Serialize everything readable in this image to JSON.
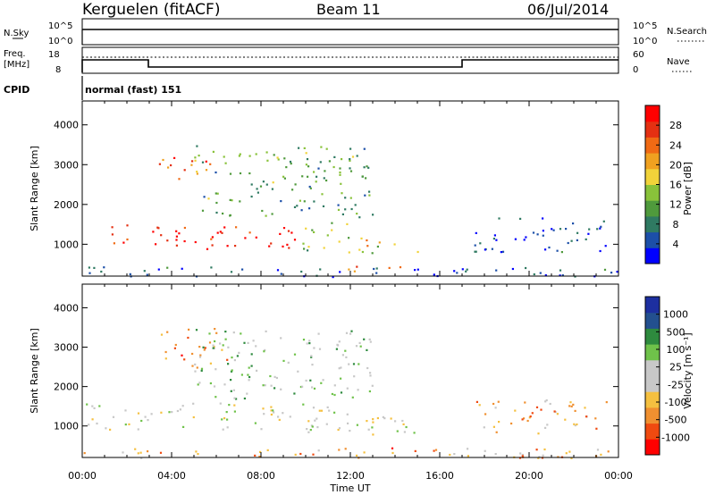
{
  "header": {
    "station": "Kerguelen (fitACF)",
    "beam": "Beam 11",
    "date": "06/Jul/2014"
  },
  "nsky": {
    "left_label": "N.Sky",
    "right_label": "N.Search",
    "left_ticks": [
      "10^5",
      "10^0"
    ],
    "right_ticks": [
      "10^5",
      "10^0"
    ]
  },
  "freq": {
    "left_label_line1": "Freq.",
    "left_label_line2": "[MHz]",
    "right_label": "Nave",
    "left_ticks": [
      "18",
      "8"
    ],
    "right_ticks": [
      "60",
      "0"
    ]
  },
  "cpid": {
    "label": "CPID",
    "program": "normal (fast) 151"
  },
  "chart_data": [
    {
      "type": "heatmap",
      "name": "power-panel",
      "ylabel": "Slant Range [km]",
      "xlabel": "",
      "y_ticks": [
        "1000",
        "2000",
        "3000",
        "4000"
      ],
      "ylim": [
        200,
        4600
      ],
      "colorbar_label": "Power [dB]",
      "colorbar_ticks": [
        "28",
        "24",
        "20",
        "16",
        "12",
        "8",
        "4"
      ],
      "colorbar_colors": [
        "#0000ff",
        "#1c4fa8",
        "#2f7a62",
        "#4f9a3c",
        "#89c23a",
        "#f1d33a",
        "#f0a120",
        "#f06a14",
        "#e43012",
        "#ff0000"
      ],
      "regions": [
        {
          "t": [
            1.3,
            10.0
          ],
          "r": [
            900,
            1500
          ],
          "level": 0.9
        },
        {
          "t": [
            3.3,
            5.8
          ],
          "r": [
            2500,
            3200
          ],
          "level": 0.75
        },
        {
          "t": [
            9.8,
            12.0
          ],
          "r": [
            800,
            1600
          ],
          "level": 0.45
        },
        {
          "t": [
            12.0,
            15.0
          ],
          "r": [
            800,
            1200
          ],
          "level": 0.55
        },
        {
          "t": [
            10.5,
            14.5
          ],
          "r": [
            330,
            480
          ],
          "level": 0.7
        },
        {
          "t": [
            5.0,
            13.0
          ],
          "r": [
            1700,
            3500
          ],
          "level": 0.35
        },
        {
          "t": [
            0.0,
            24.0
          ],
          "r": [
            200,
            450
          ],
          "level": 0.15
        },
        {
          "t": [
            17.5,
            23.5
          ],
          "r": [
            800,
            1700
          ],
          "level": 0.15
        }
      ]
    },
    {
      "type": "heatmap",
      "name": "velocity-panel",
      "ylabel": "Slant Range [km]",
      "xlabel": "Time UT",
      "x_ticks": [
        "00:00",
        "04:00",
        "08:00",
        "12:00",
        "16:00",
        "20:00",
        "00:00"
      ],
      "y_ticks": [
        "1000",
        "2000",
        "3000",
        "4000"
      ],
      "ylim": [
        200,
        4600
      ],
      "colorbar_label": "Velocity [m s⁻¹]",
      "colorbar_ticks": [
        "1000",
        "500",
        "100",
        "25",
        "-25",
        "-100",
        "-500",
        "-1000"
      ],
      "colorbar_colors": [
        "#ff0000",
        "#f04a10",
        "#f09030",
        "#f5c040",
        "#c8c8c8",
        "#c8c8c8",
        "#6fc24a",
        "#2e8a3e",
        "#23508f",
        "#1d2fa0"
      ],
      "regions": [
        {
          "t": [
            0.0,
            12.0
          ],
          "r": [
            900,
            1600
          ],
          "level": 0.5
        },
        {
          "t": [
            3.3,
            6.5
          ],
          "r": [
            2500,
            3500
          ],
          "level": 0.25
        },
        {
          "t": [
            10.0,
            15.0
          ],
          "r": [
            800,
            1300
          ],
          "level": 0.5
        },
        {
          "t": [
            10.5,
            14.0
          ],
          "r": [
            300,
            480
          ],
          "level": 0.2
        },
        {
          "t": [
            5.0,
            13.0
          ],
          "r": [
            1700,
            3500
          ],
          "level": 0.6
        },
        {
          "t": [
            0.0,
            24.0
          ],
          "r": [
            200,
            450
          ],
          "level": 0.3
        },
        {
          "t": [
            17.5,
            23.5
          ],
          "r": [
            800,
            1700
          ],
          "level": 0.3
        }
      ]
    }
  ]
}
